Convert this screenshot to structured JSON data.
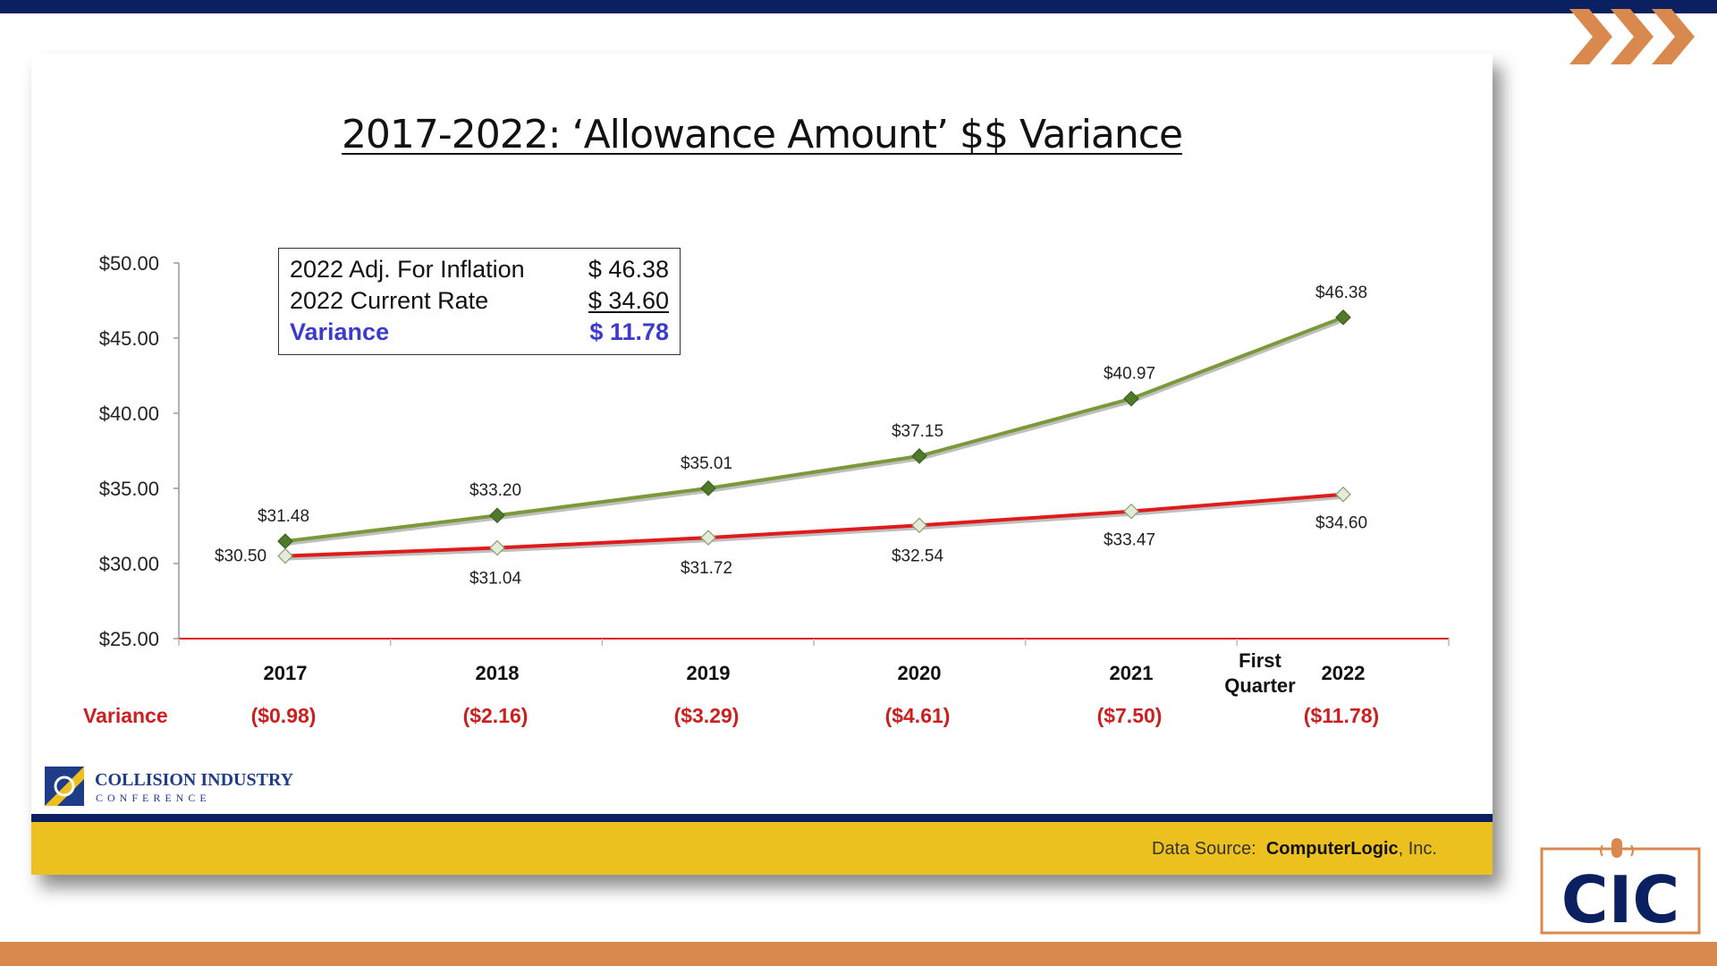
{
  "slide": {
    "title": "2017-2022:   ‘Allowance Amount’ $$ Variance",
    "infobox": {
      "rows": [
        {
          "label": "2022 Adj. For Inflation",
          "value": "$ 46.38"
        },
        {
          "label": "2022 Current Rate",
          "value": "$ 34.60"
        },
        {
          "label": "Variance",
          "value": "$ 11.78"
        }
      ]
    },
    "logo": {
      "line1": "COLLISION INDUSTRY",
      "line2": "CONFERENCE"
    },
    "data_source_label": "Data Source:",
    "data_source_value": "ComputerLogic",
    "data_source_suffix": ", Inc.",
    "badge_text": "CIC"
  },
  "colors": {
    "navy": "#0b2060",
    "orange": "#d9884e",
    "gold": "#ecc11f",
    "green_line": "#7a9a3a",
    "red_line": "#e01b1b",
    "variance_red": "#cc1f1f"
  },
  "chart_data": {
    "type": "line",
    "title": "",
    "categories": [
      "2017",
      "2018",
      "2019",
      "2020",
      "2021",
      "2022"
    ],
    "category_extra": "First Quarter",
    "ylim": [
      25,
      50
    ],
    "y_ticks": [
      "$25.00",
      "$30.00",
      "$35.00",
      "$40.00",
      "$45.00",
      "$50.00"
    ],
    "series": [
      {
        "values": [
          31.48,
          33.2,
          35.01,
          37.15,
          40.97,
          46.38
        ],
        "labels": [
          "$31.48",
          "$33.20",
          "$35.01",
          "$37.15",
          "$40.97",
          "$46.38"
        ],
        "color": "#7a9a3a"
      },
      {
        "values": [
          30.5,
          31.04,
          31.72,
          32.54,
          33.47,
          34.6
        ],
        "labels": [
          "$30.50",
          "$31.04",
          "$31.72",
          "$32.54",
          "$33.47",
          "$34.60"
        ],
        "color": "#e01b1b"
      }
    ],
    "variance_row": {
      "label": "Variance",
      "values": [
        "($0.98)",
        "($2.16)",
        "($3.29)",
        "($4.61)",
        "($7.50)",
        "($11.78)"
      ]
    }
  }
}
